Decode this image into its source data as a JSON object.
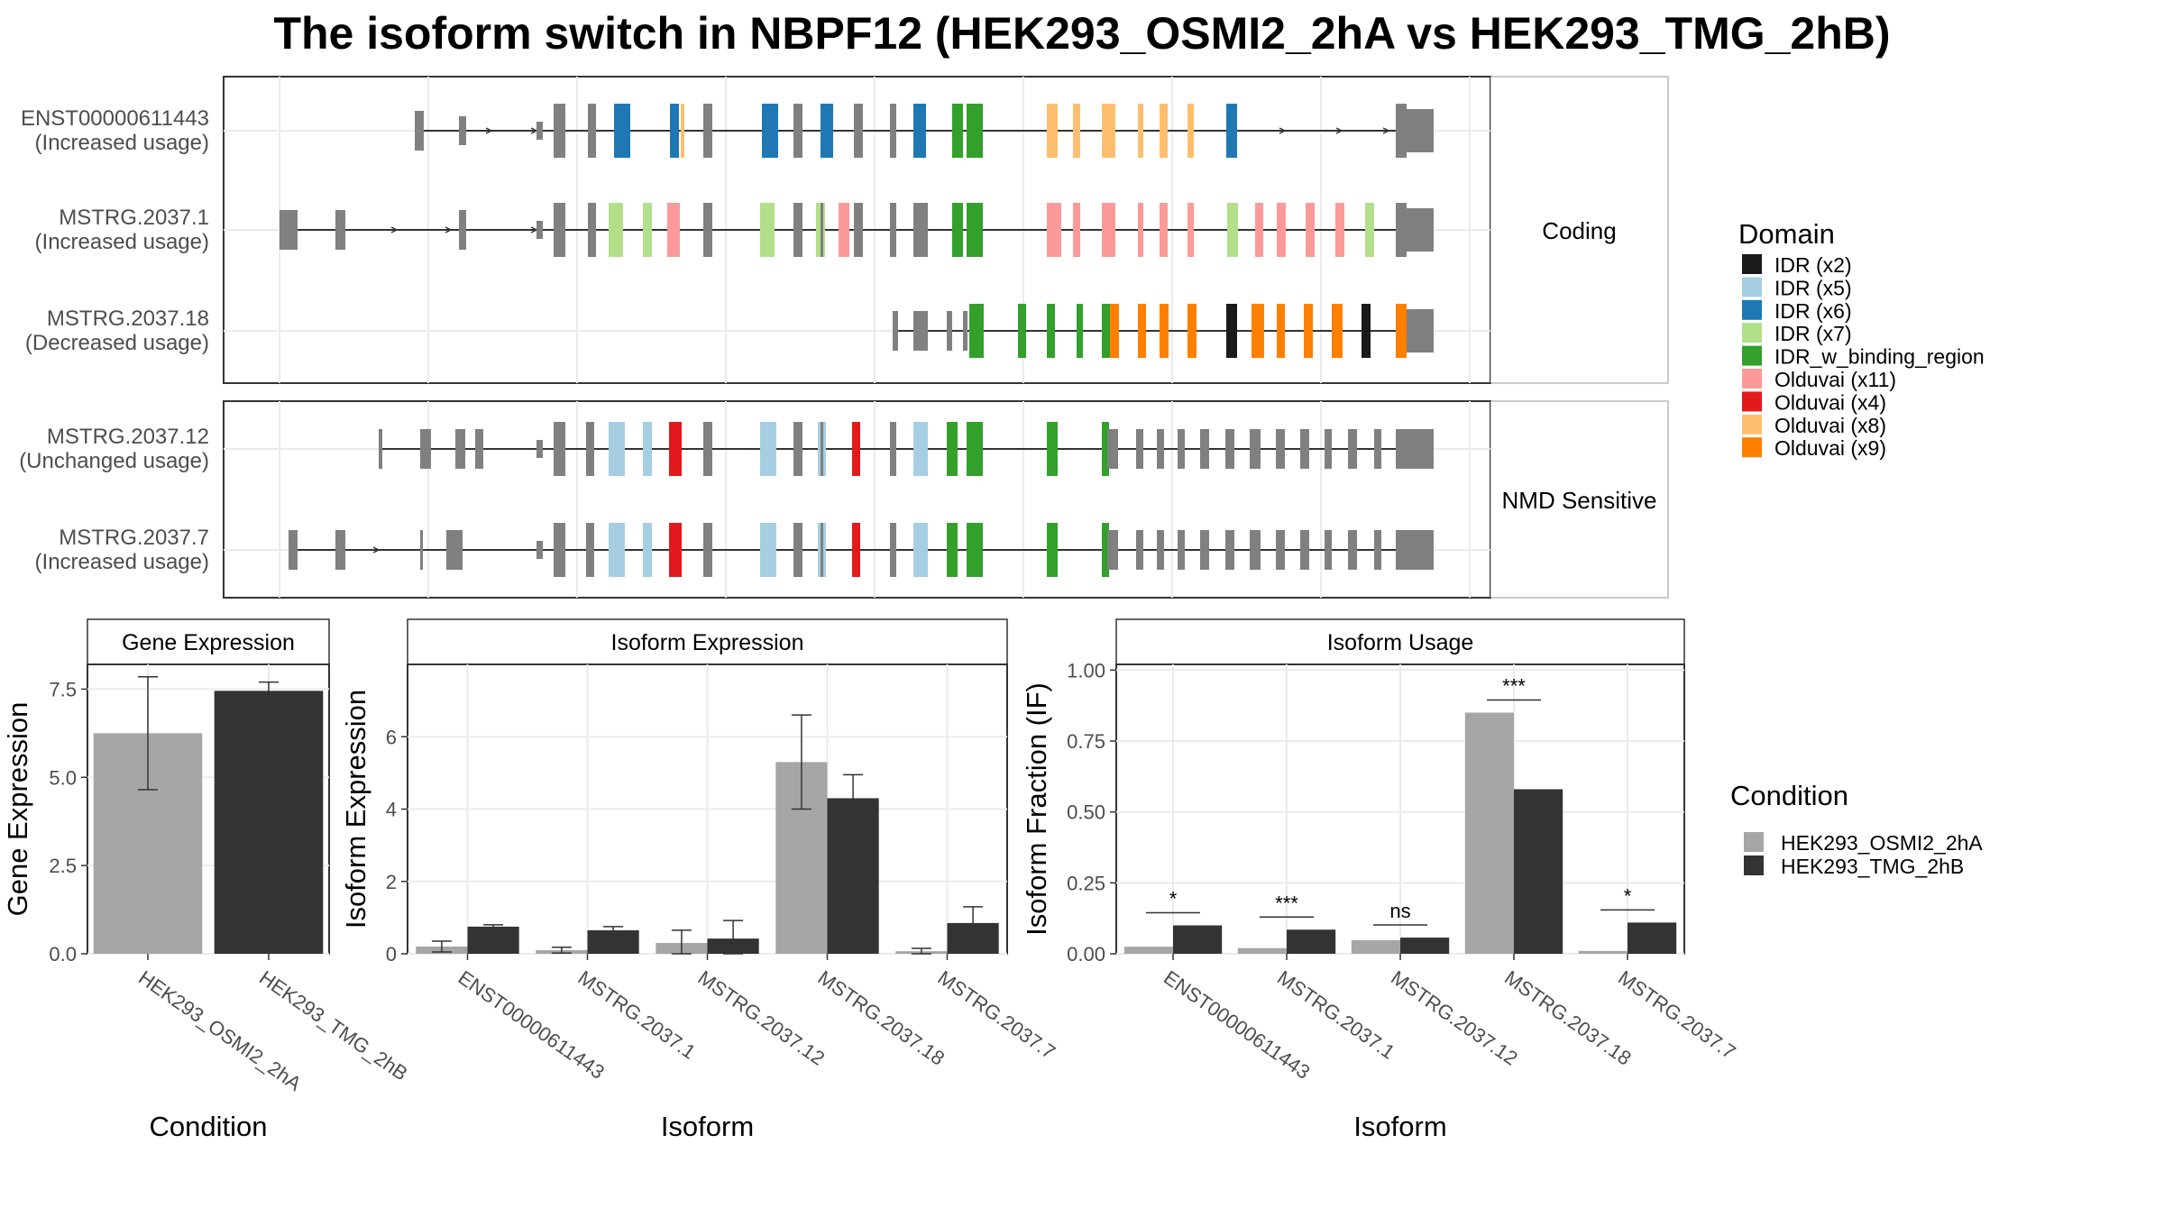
{
  "title": "The isoform switch in NBPF12 (HEK293_OSMI2_2hA vs HEK293_TMG_2hB)",
  "structure": {
    "groups": [
      {
        "label": "Coding",
        "transcripts": [
          {
            "id": "ENST00000611443",
            "usage": "(Increased usage)"
          },
          {
            "id": "MSTRG.2037.1",
            "usage": "(Increased usage)"
          },
          {
            "id": "MSTRG.2037.18",
            "usage": "(Decreased usage)"
          }
        ]
      },
      {
        "label": "NMD Sensitive",
        "transcripts": [
          {
            "id": "MSTRG.2037.12",
            "usage": "(Unchanged usage)"
          },
          {
            "id": "MSTRG.2037.7",
            "usage": "(Increased usage)"
          }
        ]
      }
    ],
    "domain_legend_title": "Domain",
    "domains": [
      {
        "name": "IDR (x2)",
        "color": "#1a1a1a"
      },
      {
        "name": "IDR (x5)",
        "color": "#a6cee3"
      },
      {
        "name": "IDR (x6)",
        "color": "#1f78b4"
      },
      {
        "name": "IDR (x7)",
        "color": "#b2df8a"
      },
      {
        "name": "IDR_w_binding_region",
        "color": "#33a02c"
      },
      {
        "name": "Olduvai (x11)",
        "color": "#fb9a99"
      },
      {
        "name": "Olduvai (x4)",
        "color": "#e31a1c"
      },
      {
        "name": "Olduvai (x8)",
        "color": "#fdbf6f"
      },
      {
        "name": "Olduvai (x9)",
        "color": "#ff7f00"
      }
    ],
    "exon_color": "#808080"
  },
  "condition_legend": {
    "title": "Condition",
    "items": [
      {
        "name": "HEK293_OSMI2_2hA",
        "color": "#a6a6a6"
      },
      {
        "name": "HEK293_TMG_2hB",
        "color": "#333333"
      }
    ]
  },
  "chart_data": [
    {
      "type": "bar",
      "panel": "Gene Expression",
      "xlabel": "Condition",
      "ylabel": "Gene Expression",
      "categories": [
        "HEK293_OSMI2_2hA",
        "HEK293_TMG_2hB"
      ],
      "values": [
        6.25,
        7.45
      ],
      "errors": [
        [
          4.65,
          7.85
        ],
        [
          7.2,
          7.7
        ]
      ],
      "ylim": [
        0,
        8.2
      ],
      "yticks": [
        "0.0",
        "2.5",
        "5.0",
        "7.5"
      ]
    },
    {
      "type": "bar",
      "panel": "Isoform Expression",
      "xlabel": "Isoform",
      "ylabel": "Isoform Expression",
      "categories": [
        "ENST00000611443",
        "MSTRG.2037.1",
        "MSTRG.2037.12",
        "MSTRG.2037.18",
        "MSTRG.2037.7"
      ],
      "series": [
        {
          "name": "HEK293_OSMI2_2hA",
          "values": [
            0.2,
            0.1,
            0.3,
            5.3,
            0.07
          ],
          "errors": [
            [
              0.05,
              0.35
            ],
            [
              0.02,
              0.18
            ],
            [
              0.0,
              0.65
            ],
            [
              4.0,
              6.6
            ],
            [
              0.0,
              0.15
            ]
          ]
        },
        {
          "name": "HEK293_TMG_2hB",
          "values": [
            0.75,
            0.65,
            0.42,
            4.3,
            0.85
          ],
          "errors": [
            [
              0.7,
              0.8
            ],
            [
              0.55,
              0.75
            ],
            [
              0.0,
              0.92
            ],
            [
              3.7,
              4.95
            ],
            [
              0.45,
              1.3
            ]
          ]
        }
      ],
      "ylim": [
        0,
        8
      ],
      "yticks": [
        "0",
        "2",
        "4",
        "6"
      ]
    },
    {
      "type": "bar",
      "panel": "Isoform Usage",
      "xlabel": "Isoform",
      "ylabel": "Isoform Fraction (IF)",
      "categories": [
        "ENST00000611443",
        "MSTRG.2037.1",
        "MSTRG.2037.12",
        "MSTRG.2037.18",
        "MSTRG.2037.7"
      ],
      "series": [
        {
          "name": "HEK293_OSMI2_2hA",
          "values": [
            0.025,
            0.02,
            0.048,
            0.85,
            0.01
          ]
        },
        {
          "name": "HEK293_TMG_2hB",
          "values": [
            0.1,
            0.085,
            0.057,
            0.58,
            0.11
          ]
        }
      ],
      "significance": [
        "*",
        "***",
        "ns",
        "***",
        "*"
      ],
      "ylim": [
        0,
        1.02
      ],
      "yticks": [
        "0.00",
        "0.25",
        "0.50",
        "0.75",
        "1.00"
      ]
    }
  ]
}
